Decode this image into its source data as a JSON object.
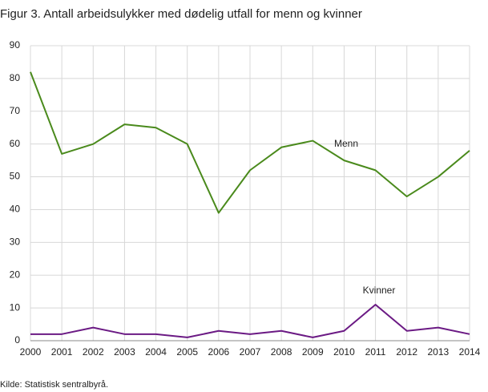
{
  "chart_data": {
    "type": "line",
    "title": "Figur 3. Antall arbeidsulykker med dødelig utfall for menn og kvinner",
    "source": "Kilde: Statistisk sentralbyrå.",
    "x": [
      2000,
      2001,
      2002,
      2003,
      2004,
      2005,
      2006,
      2007,
      2008,
      2009,
      2010,
      2011,
      2012,
      2013,
      2014
    ],
    "xlim": [
      2000,
      2014
    ],
    "xticks": [
      2000,
      2001,
      2002,
      2003,
      2004,
      2005,
      2006,
      2007,
      2008,
      2009,
      2010,
      2011,
      2012,
      2013,
      2014
    ],
    "ylim": [
      0,
      90
    ],
    "yticks": [
      0,
      10,
      20,
      30,
      40,
      50,
      60,
      70,
      80,
      90
    ],
    "grid": true,
    "series": [
      {
        "name": "Menn",
        "color": "#4a8a1c",
        "values": [
          82,
          57,
          60,
          66,
          65,
          60,
          39,
          52,
          59,
          61,
          55,
          52,
          44,
          50,
          58
        ]
      },
      {
        "name": "Kvinner",
        "color": "#6b1a84",
        "values": [
          2,
          2,
          4,
          2,
          2,
          1,
          3,
          2,
          3,
          1,
          3,
          11,
          3,
          4,
          2
        ]
      }
    ]
  }
}
